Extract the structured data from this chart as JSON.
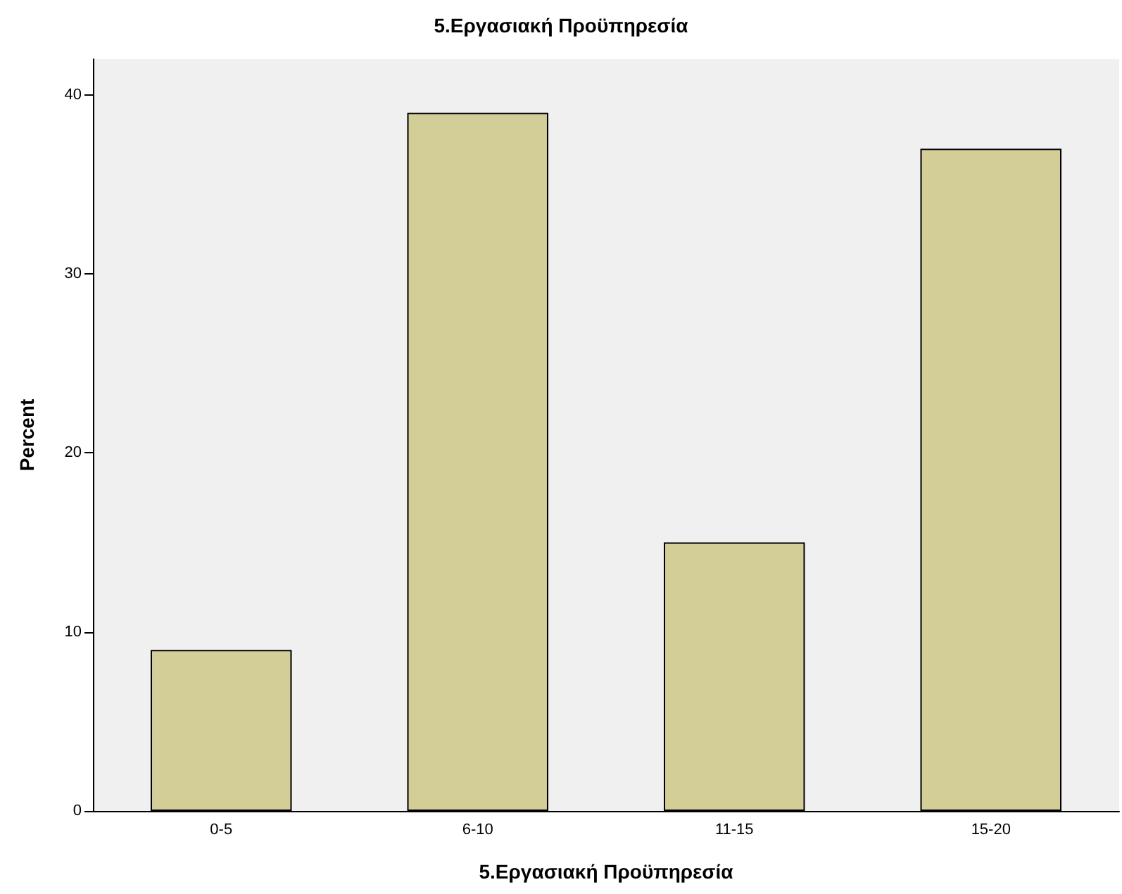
{
  "chart_data": {
    "type": "bar",
    "title": "5.Εργασιακή Προϋπηρεσία",
    "xlabel": "5.Εργασιακή Προϋπηρεσία",
    "ylabel": "Percent",
    "categories": [
      "0-5",
      "6-10",
      "11-15",
      "15-20"
    ],
    "values": [
      9,
      39,
      15,
      37
    ],
    "color": "#d3ce97",
    "ylim": [
      0,
      42
    ],
    "yticks": [
      0,
      10,
      20,
      30,
      40
    ],
    "grid": false
  }
}
